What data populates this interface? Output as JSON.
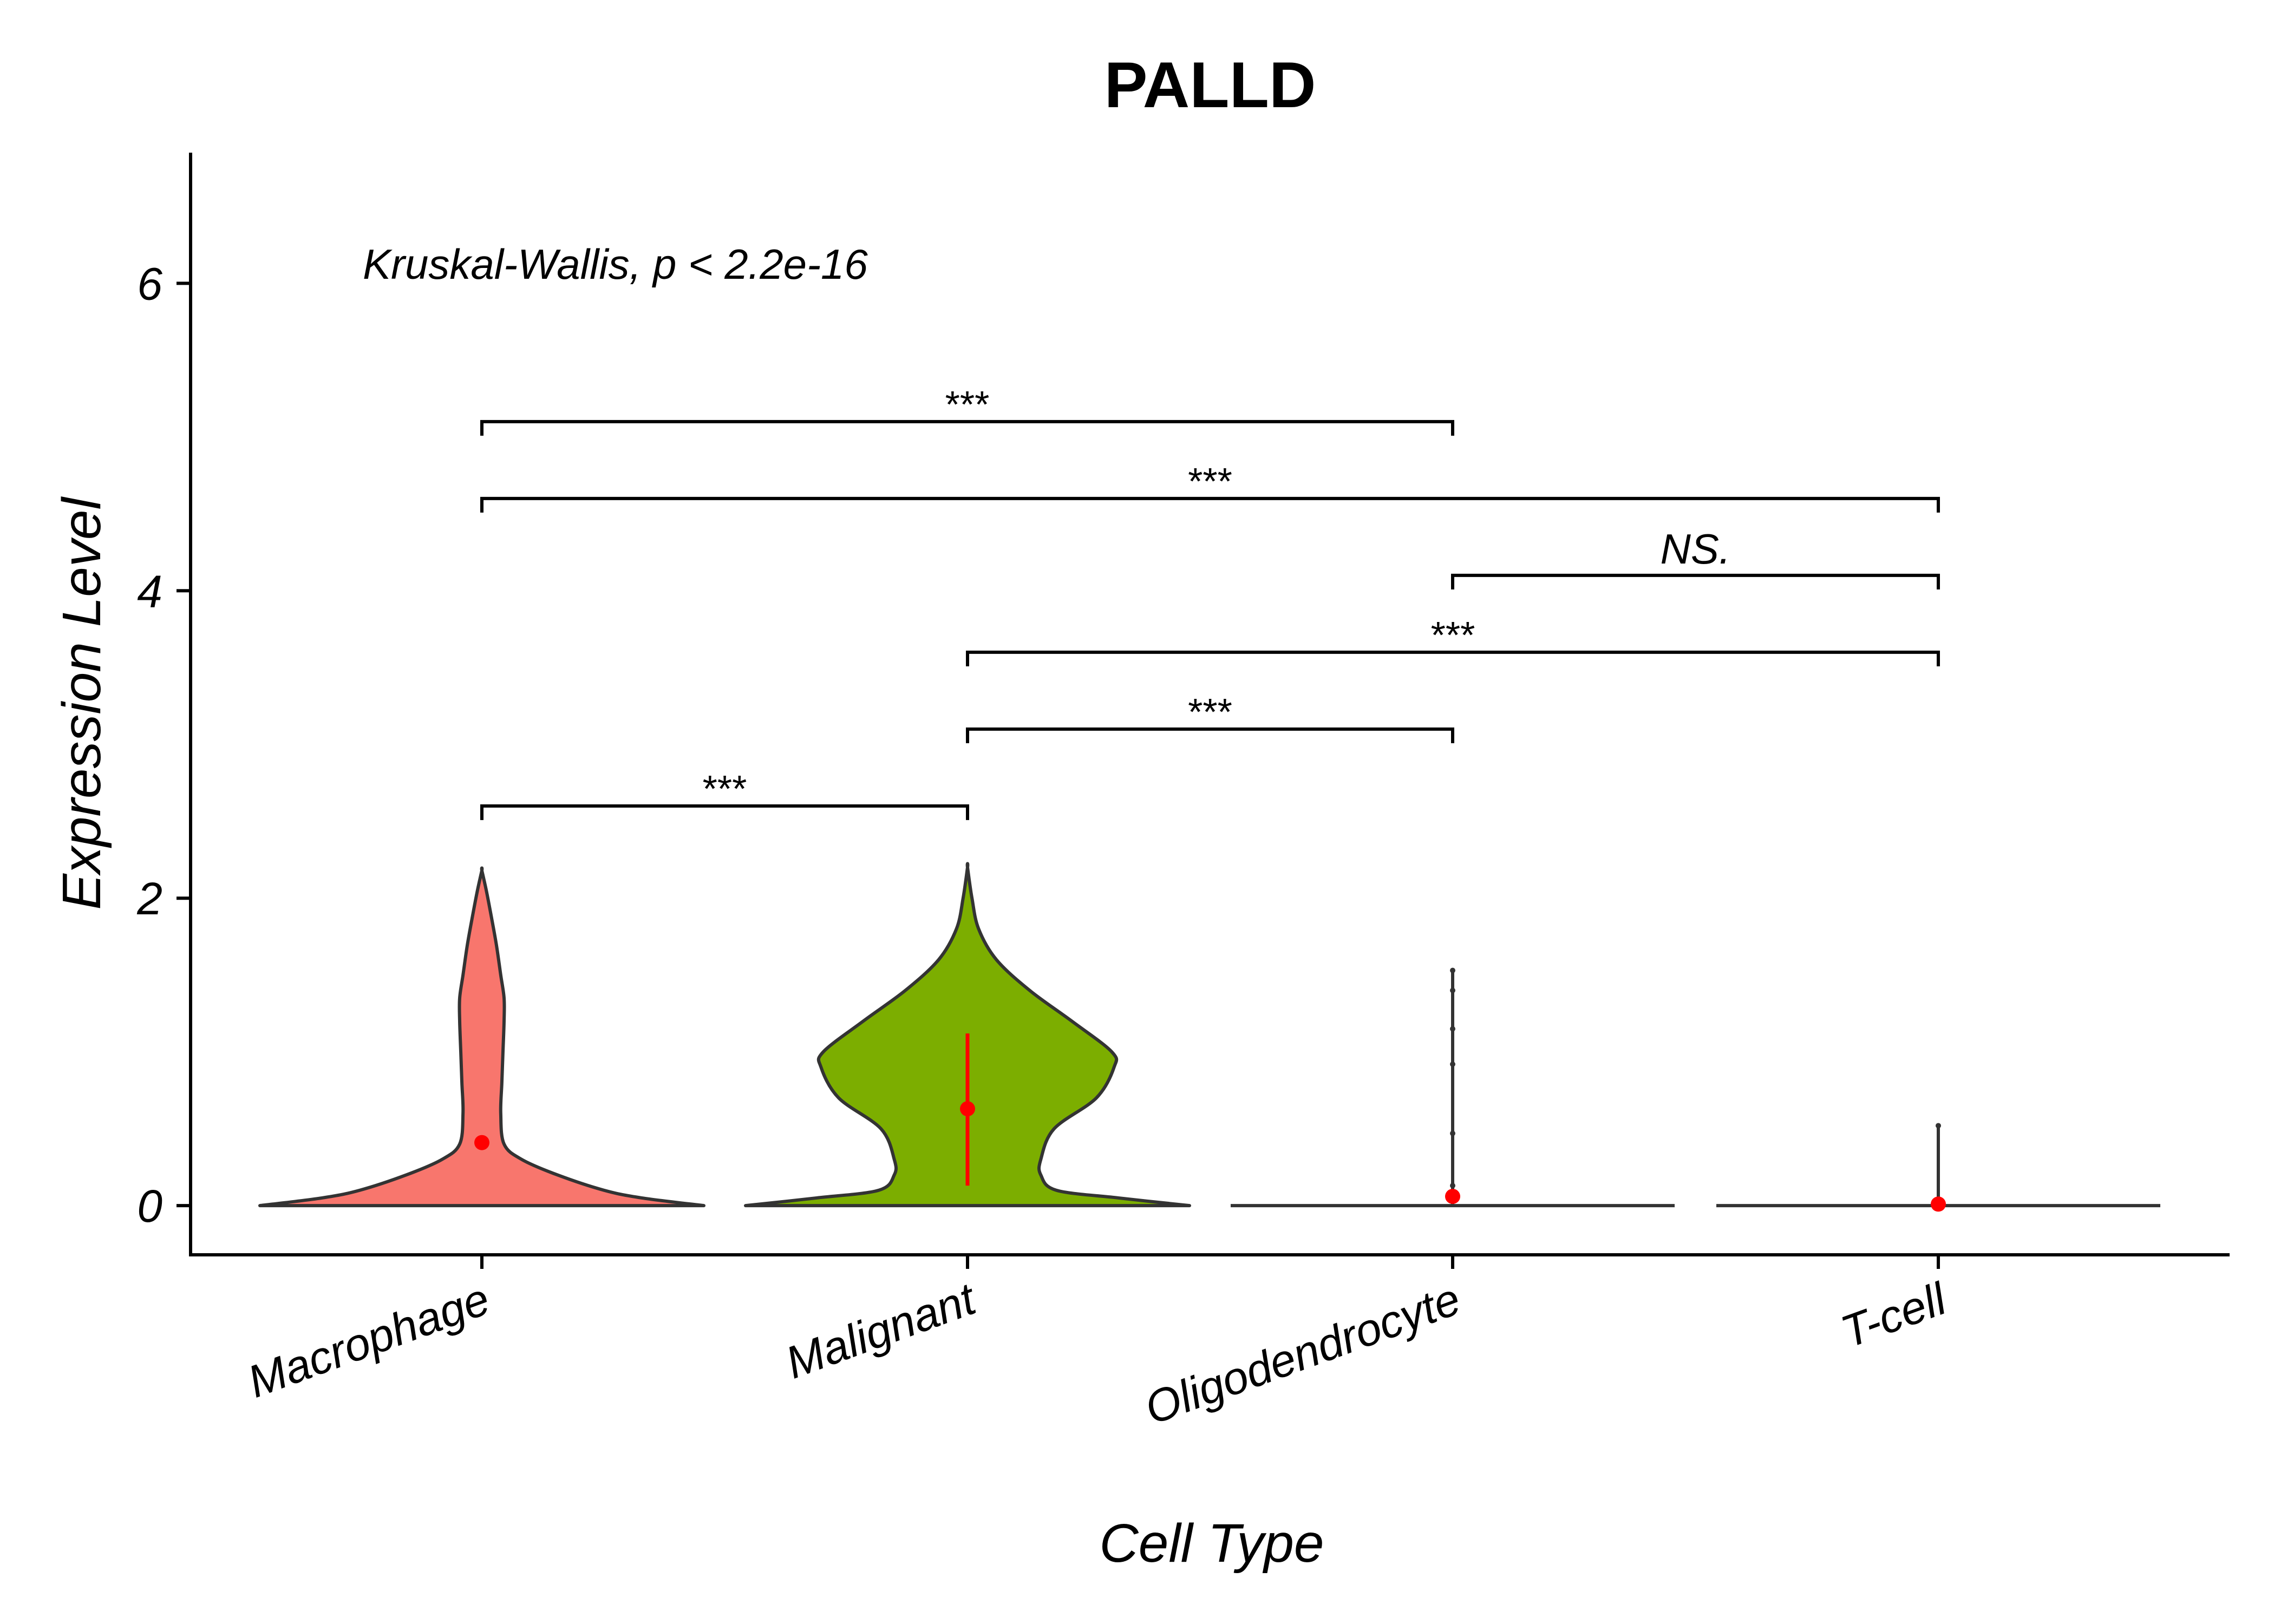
{
  "chart_data": {
    "type": "violin",
    "title": "PALLD",
    "xlabel": "Cell Type",
    "ylabel": "Expression Level",
    "ylim": [
      -0.32,
      6.85
    ],
    "yticks": [
      0,
      2,
      4,
      6
    ],
    "categories": [
      "Macrophage",
      "Malignant",
      "Oligodendrocyte",
      "T-cell"
    ],
    "annotation": "Kruskal-Wallis, p < 2.2e-16",
    "colors": {
      "Macrophage": "#F8766D",
      "Malignant": "#7CAE00",
      "outline": "#333333",
      "point": "#FF0000"
    },
    "series": [
      {
        "category": "Macrophage",
        "max": 2.18,
        "mean": 0.41,
        "density": [
          [
            0.0,
            1.0
          ],
          [
            0.05,
            0.72
          ],
          [
            0.1,
            0.55
          ],
          [
            0.2,
            0.34
          ],
          [
            0.3,
            0.18
          ],
          [
            0.4,
            0.1
          ],
          [
            0.6,
            0.085
          ],
          [
            0.8,
            0.09
          ],
          [
            1.0,
            0.095
          ],
          [
            1.2,
            0.1
          ],
          [
            1.35,
            0.1
          ],
          [
            1.5,
            0.085
          ],
          [
            1.7,
            0.065
          ],
          [
            1.9,
            0.04
          ],
          [
            2.05,
            0.02
          ],
          [
            2.18,
            0.0
          ]
        ]
      },
      {
        "category": "Malignant",
        "max": 2.2,
        "mean": 0.63,
        "interval": [
          0.13,
          1.12
        ],
        "density": [
          [
            0.0,
            1.0
          ],
          [
            0.05,
            0.68
          ],
          [
            0.1,
            0.4
          ],
          [
            0.2,
            0.33
          ],
          [
            0.3,
            0.33
          ],
          [
            0.5,
            0.39
          ],
          [
            0.7,
            0.58
          ],
          [
            0.9,
            0.66
          ],
          [
            1.0,
            0.65
          ],
          [
            1.2,
            0.47
          ],
          [
            1.4,
            0.28
          ],
          [
            1.6,
            0.13
          ],
          [
            1.8,
            0.05
          ],
          [
            2.0,
            0.02
          ],
          [
            2.2,
            0.0
          ]
        ]
      },
      {
        "category": "Oligodendrocyte",
        "max": 1.53,
        "mean": 0.06,
        "outliers": [
          0.13,
          0.47,
          0.92,
          1.15,
          1.4,
          1.53
        ]
      },
      {
        "category": "T-cell",
        "max": 0.52,
        "mean": 0.01,
        "outliers": [
          0.52
        ]
      }
    ],
    "comparisons": [
      {
        "from": "Macrophage",
        "to": "Oligodendrocyte",
        "y": 5.1,
        "label": "***"
      },
      {
        "from": "Macrophage",
        "to": "T-cell",
        "y": 4.6,
        "label": "***"
      },
      {
        "from": "Oligodendrocyte",
        "to": "T-cell",
        "y": 4.1,
        "label": "NS."
      },
      {
        "from": "Malignant",
        "to": "T-cell",
        "y": 3.6,
        "label": "***"
      },
      {
        "from": "Malignant",
        "to": "Oligodendrocyte",
        "y": 3.1,
        "label": "***"
      },
      {
        "from": "Macrophage",
        "to": "Malignant",
        "y": 2.6,
        "label": "***"
      }
    ]
  }
}
